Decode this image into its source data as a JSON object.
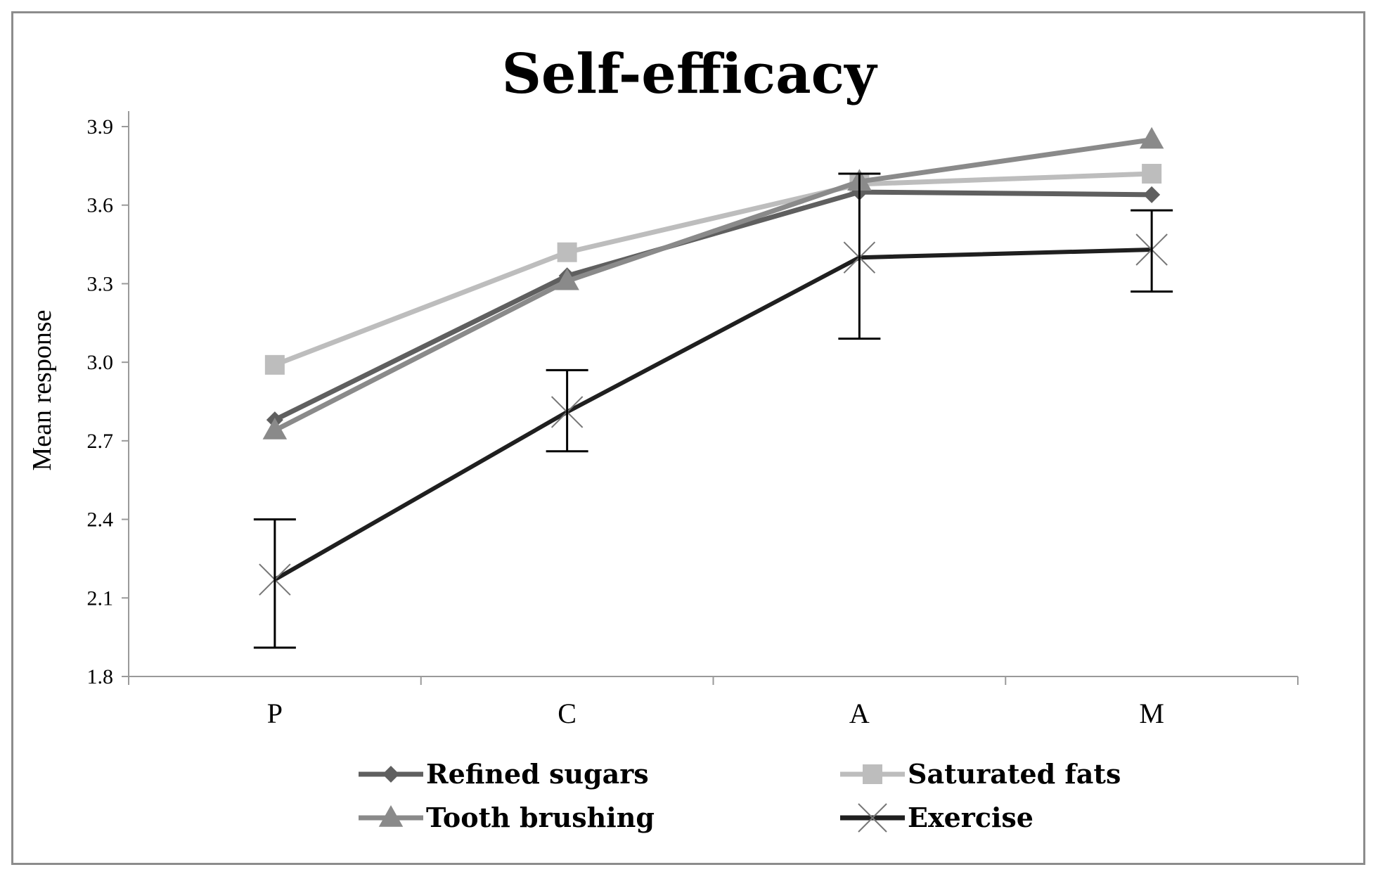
{
  "chart_data": {
    "type": "line",
    "title": "Self-efficacy",
    "xlabel": "",
    "ylabel": "Mean response",
    "categories": [
      "P",
      "C",
      "A",
      "M"
    ],
    "ylim": [
      1.8,
      3.9
    ],
    "yticks": [
      "1.8",
      "2.1",
      "2.4",
      "2.7",
      "3.0",
      "3.3",
      "3.6",
      "3.9"
    ],
    "grid": false,
    "legend_position": "bottom",
    "series": [
      {
        "name": "Refined sugars",
        "values": [
          2.78,
          3.33,
          3.65,
          3.64
        ],
        "color": "#5f5f5f",
        "marker": "diamond"
      },
      {
        "name": "Saturated fats",
        "values": [
          2.99,
          3.42,
          3.68,
          3.72
        ],
        "color": "#bdbdbd",
        "marker": "square"
      },
      {
        "name": "Tooth brushing",
        "values": [
          2.74,
          3.31,
          3.69,
          3.85
        ],
        "color": "#8a8a8a",
        "marker": "triangle"
      },
      {
        "name": "Exercise",
        "values": [
          2.17,
          2.81,
          3.4,
          3.43
        ],
        "color": "#1f1f1f",
        "marker": "x",
        "error_bars": [
          [
            1.91,
            2.4
          ],
          [
            2.66,
            2.97
          ],
          [
            3.09,
            3.72
          ],
          [
            3.27,
            3.58
          ]
        ]
      }
    ]
  }
}
